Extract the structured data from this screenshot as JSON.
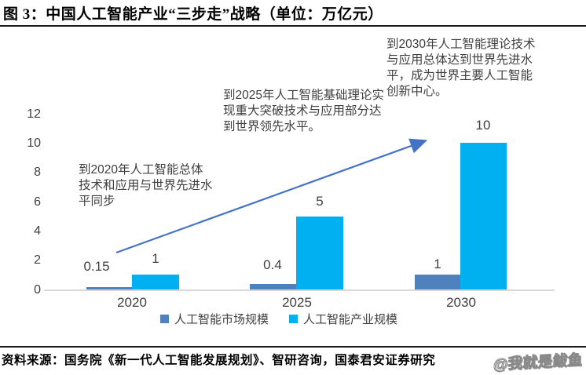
{
  "title": "图 3：中国人工智能产业“三步走”战略（单位：万亿元）",
  "source_note": "资料来源：国务院《新一代人工智能发展规划》、智研咨询，国泰君安证券研究",
  "watermark": "@我就是鲅鱼",
  "colors": {
    "market_series": "#4f81bd",
    "industry_series": "#00b0f0",
    "arrow": "#4472c4",
    "axis_line": "#d9d9d9",
    "text": "#404040"
  },
  "chart_data": {
    "type": "bar",
    "title": "中国人工智能产业“三步走”战略",
    "unit": "万亿元",
    "categories": [
      "2020",
      "2025",
      "2030"
    ],
    "series": [
      {
        "name": "人工智能市场规模",
        "color": "#4f81bd",
        "values": [
          0.15,
          0.4,
          1
        ],
        "labels": [
          "0.15",
          "0.4",
          "1"
        ]
      },
      {
        "name": "人工智能产业规模",
        "color": "#00b0f0",
        "values": [
          1,
          5,
          10
        ],
        "labels": [
          "1",
          "5",
          "10"
        ]
      }
    ],
    "yticks": [
      0,
      2,
      4,
      6,
      8,
      10,
      12
    ],
    "ylim": [
      0,
      12
    ],
    "grid": false,
    "legend_position": "bottom",
    "annotations": [
      {
        "target": "2020",
        "text": "到2020年人工智能总体技术和应用与世界先进水平同步"
      },
      {
        "target": "2025",
        "text": "到2025年人工智能基础理论实现重大突破技术与应用部分达到世界领先水平。"
      },
      {
        "target": "2030",
        "text": "到2030年人工智能理论技术与应用总体达到世界先进水平，成为世界主要人工智能创新中心。"
      }
    ],
    "arrow": {
      "from_xy": [
        148,
        322
      ],
      "to_xy": [
        540,
        180
      ]
    }
  }
}
